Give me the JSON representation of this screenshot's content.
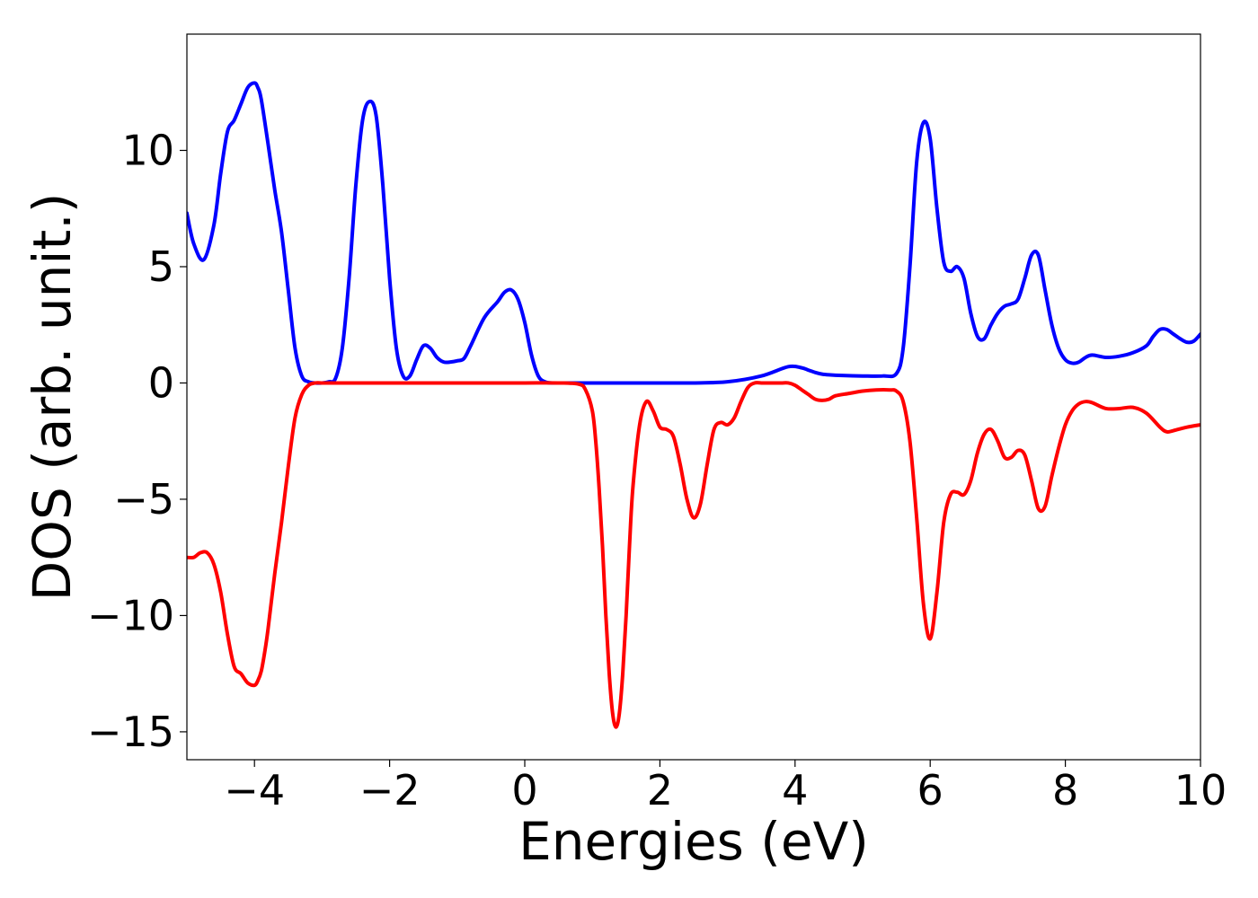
{
  "chart_data": {
    "type": "line",
    "title": "",
    "xlabel": "Energies (eV)",
    "ylabel": "DOS (arb. unit.)",
    "xlim": [
      -5,
      10
    ],
    "ylim": [
      -16.2,
      15
    ],
    "x_ticks": [
      -4,
      -2,
      0,
      2,
      4,
      6,
      8,
      10
    ],
    "x_tick_labels": [
      "−4",
      "−2",
      "0",
      "2",
      "4",
      "6",
      "8",
      "10"
    ],
    "y_ticks": [
      10,
      5,
      0,
      -5,
      -10,
      -15
    ],
    "y_tick_labels": [
      "10",
      "5",
      "0",
      "−5",
      "−10",
      "−15"
    ],
    "grid": false,
    "legend": "none",
    "series": [
      {
        "color": "#0000ff",
        "x": [
          -5.0,
          -4.9,
          -4.75,
          -4.6,
          -4.5,
          -4.4,
          -4.3,
          -4.2,
          -4.1,
          -4.0,
          -3.95,
          -3.9,
          -3.8,
          -3.7,
          -3.6,
          -3.5,
          -3.4,
          -3.3,
          -3.2,
          -3.1,
          -3.0,
          -2.9,
          -2.8,
          -2.7,
          -2.6,
          -2.5,
          -2.4,
          -2.3,
          -2.2,
          -2.1,
          -2.0,
          -1.9,
          -1.8,
          -1.7,
          -1.6,
          -1.5,
          -1.4,
          -1.3,
          -1.2,
          -1.1,
          -1.0,
          -0.9,
          -0.8,
          -0.6,
          -0.4,
          -0.3,
          -0.2,
          -0.1,
          0.0,
          0.1,
          0.2,
          0.3,
          0.4,
          0.5,
          0.6,
          0.7,
          0.8,
          1.0,
          1.5,
          2.0,
          2.5,
          3.0,
          3.5,
          3.9,
          4.1,
          4.2,
          4.3,
          4.4,
          4.5,
          4.7,
          5.0,
          5.3,
          5.5,
          5.6,
          5.7,
          5.8,
          5.9,
          6.0,
          6.1,
          6.2,
          6.3,
          6.4,
          6.5,
          6.6,
          6.7,
          6.8,
          6.9,
          7.0,
          7.1,
          7.2,
          7.3,
          7.4,
          7.5,
          7.6,
          7.7,
          7.8,
          7.9,
          8.0,
          8.1,
          8.2,
          8.3,
          8.4,
          8.6,
          8.8,
          9.0,
          9.2,
          9.3,
          9.4,
          9.5,
          9.6,
          9.7,
          9.8,
          9.9,
          10.0
        ],
        "values": [
          7.3,
          6.0,
          5.3,
          6.8,
          9.0,
          10.8,
          11.3,
          12.0,
          12.7,
          12.9,
          12.7,
          12.2,
          10.3,
          8.3,
          6.5,
          4.0,
          1.5,
          0.3,
          0.05,
          0.0,
          0.0,
          0.05,
          0.2,
          1.5,
          4.5,
          8.5,
          11.3,
          12.1,
          11.5,
          8.5,
          4.5,
          1.5,
          0.3,
          0.3,
          1.0,
          1.6,
          1.5,
          1.1,
          0.9,
          0.9,
          0.95,
          1.05,
          1.6,
          2.8,
          3.5,
          3.9,
          4.0,
          3.6,
          2.6,
          1.2,
          0.3,
          0.05,
          0.0,
          0.0,
          0.0,
          0.0,
          0.0,
          0.0,
          0.0,
          0.0,
          0.0,
          0.05,
          0.3,
          0.7,
          0.65,
          0.55,
          0.45,
          0.38,
          0.35,
          0.32,
          0.3,
          0.3,
          0.4,
          1.5,
          5.0,
          9.5,
          11.2,
          10.5,
          7.5,
          5.2,
          4.8,
          5.0,
          4.5,
          3.0,
          2.0,
          1.9,
          2.5,
          3.0,
          3.3,
          3.4,
          3.6,
          4.5,
          5.5,
          5.5,
          4.0,
          2.5,
          1.5,
          1.0,
          0.85,
          0.9,
          1.1,
          1.2,
          1.1,
          1.15,
          1.3,
          1.6,
          2.0,
          2.3,
          2.3,
          2.1,
          1.9,
          1.75,
          1.8,
          2.1
        ],
        "name": ""
      },
      {
        "color": "#ff0000",
        "x": [
          -5.0,
          -4.9,
          -4.8,
          -4.7,
          -4.6,
          -4.5,
          -4.4,
          -4.3,
          -4.2,
          -4.1,
          -4.0,
          -3.95,
          -3.9,
          -3.85,
          -3.8,
          -3.7,
          -3.6,
          -3.5,
          -3.4,
          -3.3,
          -3.2,
          -3.1,
          -3.0,
          -2.9,
          -2.5,
          -2.0,
          -1.5,
          -1.0,
          -0.5,
          0.0,
          0.5,
          0.8,
          0.9,
          1.0,
          1.05,
          1.1,
          1.15,
          1.2,
          1.25,
          1.3,
          1.35,
          1.4,
          1.45,
          1.5,
          1.55,
          1.6,
          1.7,
          1.8,
          1.9,
          2.0,
          2.1,
          2.2,
          2.3,
          2.4,
          2.5,
          2.6,
          2.7,
          2.8,
          2.9,
          3.0,
          3.1,
          3.2,
          3.3,
          3.4,
          3.5,
          3.6,
          3.7,
          3.8,
          3.9,
          4.0,
          4.1,
          4.2,
          4.3,
          4.4,
          4.5,
          4.6,
          4.8,
          5.0,
          5.2,
          5.4,
          5.5,
          5.6,
          5.7,
          5.8,
          5.9,
          6.0,
          6.1,
          6.2,
          6.3,
          6.4,
          6.5,
          6.6,
          6.7,
          6.8,
          6.9,
          7.0,
          7.1,
          7.2,
          7.3,
          7.4,
          7.5,
          7.6,
          7.7,
          7.8,
          7.9,
          8.0,
          8.1,
          8.2,
          8.3,
          8.4,
          8.6,
          8.8,
          9.0,
          9.2,
          9.4,
          9.5,
          9.6,
          9.8,
          10.0
        ],
        "values": [
          -7.5,
          -7.5,
          -7.3,
          -7.3,
          -7.8,
          -9.0,
          -10.8,
          -12.2,
          -12.5,
          -12.9,
          -13.0,
          -12.8,
          -12.4,
          -11.6,
          -10.6,
          -8.2,
          -6.0,
          -3.6,
          -1.5,
          -0.5,
          -0.1,
          0.0,
          0.0,
          0.0,
          0.0,
          0.0,
          0.0,
          0.0,
          0.0,
          0.0,
          0.0,
          -0.05,
          -0.3,
          -1.2,
          -2.5,
          -4.5,
          -7.0,
          -10.0,
          -12.5,
          -14.2,
          -14.8,
          -14.2,
          -12.5,
          -10.0,
          -7.0,
          -4.5,
          -1.8,
          -0.8,
          -1.2,
          -1.9,
          -2.0,
          -2.3,
          -3.5,
          -5.0,
          -5.8,
          -5.2,
          -3.5,
          -2.0,
          -1.7,
          -1.8,
          -1.5,
          -0.8,
          -0.2,
          0.0,
          0.0,
          0.0,
          0.0,
          0.0,
          0.0,
          -0.1,
          -0.3,
          -0.5,
          -0.7,
          -0.75,
          -0.7,
          -0.55,
          -0.45,
          -0.35,
          -0.3,
          -0.3,
          -0.35,
          -0.8,
          -2.5,
          -5.8,
          -9.5,
          -11.0,
          -9.0,
          -6.0,
          -4.8,
          -4.7,
          -4.8,
          -4.2,
          -3.0,
          -2.2,
          -2.0,
          -2.5,
          -3.2,
          -3.2,
          -2.9,
          -3.1,
          -4.2,
          -5.4,
          -5.3,
          -4.0,
          -2.8,
          -1.8,
          -1.2,
          -0.9,
          -0.8,
          -0.85,
          -1.1,
          -1.1,
          -1.05,
          -1.3,
          -1.9,
          -2.1,
          -2.05,
          -1.9,
          -1.8
        ],
        "name": ""
      }
    ]
  }
}
